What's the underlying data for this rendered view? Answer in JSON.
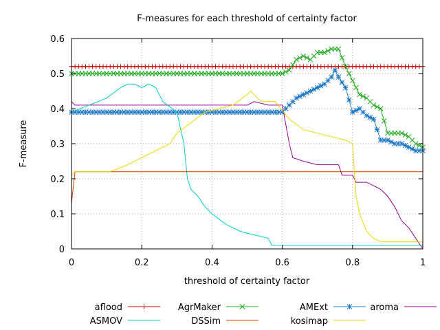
{
  "chart_data": {
    "type": "line",
    "title": "F-measures for each threshold of certainty factor",
    "xlabel": "threshold of certainty factor",
    "ylabel": "F-measure",
    "xlim": [
      0,
      1
    ],
    "ylim": [
      0,
      0.6
    ],
    "xticks": [
      "0",
      "0.2",
      "0.4",
      "0.6",
      "0.8",
      "1"
    ],
    "yticks": [
      "0",
      "0.1",
      "0.2",
      "0.3",
      "0.4",
      "0.5",
      "0.6"
    ],
    "grid": true,
    "legend_position": "bottom",
    "series": [
      {
        "name": "aflood",
        "color": "#cc0000",
        "marker": "plus",
        "x": [
          0,
          0.01,
          1
        ],
        "y": [
          0.52,
          0.52,
          0.52
        ]
      },
      {
        "name": "AgrMaker",
        "color": "#22aa22",
        "marker": "x",
        "x": [
          0,
          0.6,
          0.62,
          0.64,
          0.66,
          0.68,
          0.7,
          0.72,
          0.74,
          0.76,
          0.78,
          0.8,
          0.82,
          0.84,
          0.86,
          0.88,
          0.9,
          0.92,
          0.94,
          0.96,
          0.98,
          1
        ],
        "y": [
          0.5,
          0.5,
          0.51,
          0.54,
          0.55,
          0.54,
          0.56,
          0.56,
          0.57,
          0.57,
          0.52,
          0.48,
          0.44,
          0.43,
          0.41,
          0.4,
          0.33,
          0.33,
          0.33,
          0.32,
          0.3,
          0.29
        ]
      },
      {
        "name": "AMExt",
        "color": "#1e78c8",
        "marker": "star",
        "x": [
          0,
          0.6,
          0.62,
          0.64,
          0.66,
          0.68,
          0.7,
          0.72,
          0.74,
          0.75,
          0.76,
          0.78,
          0.8,
          0.82,
          0.84,
          0.86,
          0.88,
          0.9,
          0.92,
          0.94,
          0.96,
          0.98,
          1
        ],
        "y": [
          0.39,
          0.39,
          0.41,
          0.43,
          0.44,
          0.45,
          0.46,
          0.47,
          0.49,
          0.51,
          0.49,
          0.46,
          0.39,
          0.4,
          0.38,
          0.37,
          0.31,
          0.31,
          0.3,
          0.3,
          0.29,
          0.28,
          0.28
        ]
      },
      {
        "name": "aroma",
        "color": "#990099",
        "marker": "none",
        "x": [
          0,
          0.01,
          0.42,
          0.44,
          0.5,
          0.52,
          0.56,
          0.6,
          0.62,
          0.63,
          0.66,
          0.7,
          0.72,
          0.76,
          0.77,
          0.8,
          0.81,
          0.84,
          0.86,
          0.88,
          0.9,
          0.92,
          0.94,
          0.96,
          0.98,
          1
        ],
        "y": [
          0.42,
          0.41,
          0.41,
          0.41,
          0.41,
          0.42,
          0.41,
          0.41,
          0.3,
          0.26,
          0.25,
          0.24,
          0.24,
          0.24,
          0.21,
          0.21,
          0.19,
          0.19,
          0.18,
          0.17,
          0.15,
          0.12,
          0.08,
          0.06,
          0.03,
          0.0
        ]
      },
      {
        "name": "ASMOV",
        "color": "#00cccc",
        "marker": "none",
        "x": [
          0,
          0.1,
          0.14,
          0.16,
          0.18,
          0.2,
          0.22,
          0.24,
          0.26,
          0.3,
          0.32,
          0.33,
          0.34,
          0.36,
          0.38,
          0.4,
          0.44,
          0.48,
          0.52,
          0.56,
          0.57,
          0.6,
          1
        ],
        "y": [
          0.39,
          0.43,
          0.46,
          0.47,
          0.47,
          0.46,
          0.47,
          0.46,
          0.42,
          0.39,
          0.3,
          0.2,
          0.17,
          0.15,
          0.12,
          0.1,
          0.07,
          0.05,
          0.04,
          0.03,
          0.01,
          0.01,
          0.01
        ]
      },
      {
        "name": "DSSim",
        "color": "#cc4400",
        "marker": "none",
        "x": [
          0,
          0.01,
          1
        ],
        "y": [
          0.13,
          0.22,
          0.22
        ]
      },
      {
        "name": "kosimap",
        "color": "#e8d800",
        "marker": "none",
        "x": [
          0,
          0.01,
          0.11,
          0.16,
          0.2,
          0.24,
          0.28,
          0.3,
          0.34,
          0.38,
          0.42,
          0.46,
          0.5,
          0.51,
          0.54,
          0.58,
          0.62,
          0.66,
          0.7,
          0.74,
          0.78,
          0.8,
          0.81,
          0.82,
          0.84,
          0.86,
          0.88,
          0.9,
          1
        ],
        "y": [
          0.21,
          0.22,
          0.22,
          0.24,
          0.26,
          0.28,
          0.3,
          0.33,
          0.36,
          0.39,
          0.4,
          0.41,
          0.44,
          0.45,
          0.42,
          0.42,
          0.37,
          0.34,
          0.33,
          0.32,
          0.31,
          0.3,
          0.15,
          0.1,
          0.05,
          0.03,
          0.02,
          0.02,
          0.02
        ]
      }
    ]
  }
}
